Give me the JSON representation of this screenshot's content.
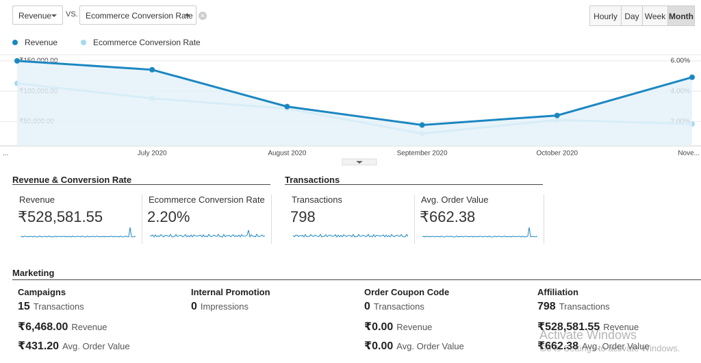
{
  "controls": {
    "metric1": "Revenue",
    "vs": "VS.",
    "metric2": "Ecommerce Conversion Rate",
    "periods": [
      "Hourly",
      "Day",
      "Week",
      "Month"
    ]
  },
  "chart": {
    "type": "line",
    "categories": [
      "...",
      "July 2020",
      "August 2020",
      "September 2020",
      "October 2020",
      "Nove..."
    ],
    "series": [
      {
        "name": "Revenue",
        "color": "#1b87c1",
        "values": [
          150000,
          135400,
          74700,
          44400,
          60100,
          123000
        ]
      },
      {
        "name": "Ecommerce Conversion Rate",
        "color": "#a6d9ef",
        "axis": "y2",
        "values": [
          4.52,
          3.53,
          2.85,
          1.21,
          2.11,
          1.84
        ]
      }
    ],
    "ylim": [
      10000,
      160000
    ],
    "yticks": [
      {
        "value": 50000,
        "label": "₹50,000.00"
      },
      {
        "value": 100000,
        "label": "₹100,000.00"
      },
      {
        "value": 150000,
        "label": "₹150,000.00"
      }
    ],
    "y2lim": [
      0.4,
      6.4
    ],
    "y2ticks": [
      {
        "value": 2,
        "label": "2.00%"
      },
      {
        "value": 4,
        "label": "4.00%"
      },
      {
        "value": 6,
        "label": "6.00%"
      }
    ],
    "grid": true
  },
  "scorecards": [
    {
      "title": "Revenue & Conversion Rate",
      "cards": [
        {
          "label": "Revenue",
          "value": "₹528,581.55"
        },
        {
          "label": "Ecommerce Conversion Rate",
          "value": "2.20%"
        }
      ]
    },
    {
      "title": "Transactions",
      "cards": [
        {
          "label": "Transactions",
          "value": "798"
        },
        {
          "label": "Avg. Order Value",
          "value": "₹662.38"
        }
      ]
    }
  ],
  "marketing": {
    "title": "Marketing",
    "columns": [
      {
        "title": "Campaigns",
        "rows": [
          {
            "value": "15",
            "label": "Transactions"
          },
          {
            "value": "₹6,468.00",
            "label": "Revenue"
          },
          {
            "value": "₹431.20",
            "label": "Avg. Order Value"
          }
        ]
      },
      {
        "title": "Internal Promotion",
        "rows": [
          {
            "value": "0",
            "label": "Impressions"
          }
        ]
      },
      {
        "title": "Order Coupon Code",
        "rows": [
          {
            "value": "0",
            "label": "Transactions"
          },
          {
            "value": "₹0.00",
            "label": "Revenue"
          },
          {
            "value": "₹0.00",
            "label": "Avg. Order Value"
          }
        ]
      },
      {
        "title": "Affiliation",
        "rows": [
          {
            "value": "798",
            "label": "Transactions"
          },
          {
            "value": "₹528,581.55",
            "label": "Revenue"
          },
          {
            "value": "₹662.38",
            "label": "Avg. Order Value"
          }
        ]
      }
    ]
  },
  "watermark": {
    "title": "Activate Windows",
    "text": "Go to Settings to activate Windows."
  }
}
